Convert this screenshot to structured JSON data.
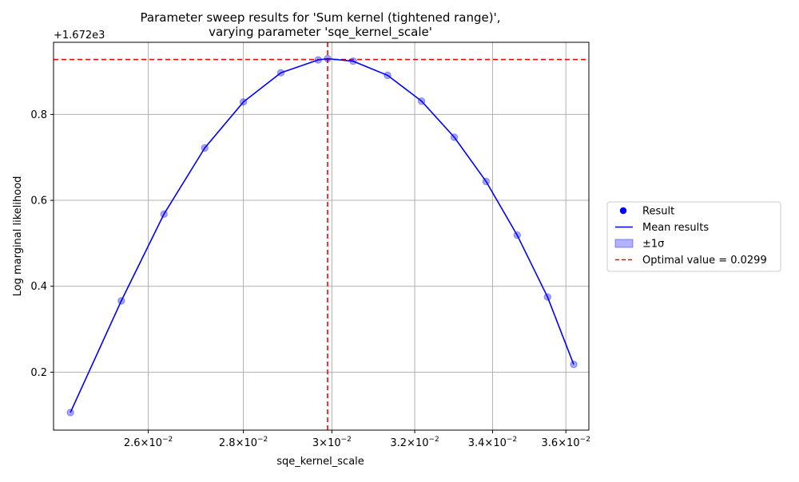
{
  "chart_data": {
    "type": "line",
    "title_line1": "Parameter sweep results for 'Sum kernel (tightened range)',",
    "title_line2": "varying parameter 'sqe_kernel_scale'",
    "xlabel": "sqe_kernel_scale",
    "ylabel": "Log marginal likelihood",
    "x_scale": "log",
    "y_offset_label": "+1.672e3",
    "xlim": [
      0.02415,
      0.03665
    ],
    "ylim": [
      0.065,
      0.968
    ],
    "grid": true,
    "x_ticks": [
      {
        "value": 0.026,
        "mantissa": "2.6",
        "exp": "−2"
      },
      {
        "value": 0.028,
        "mantissa": "2.8",
        "exp": "−2"
      },
      {
        "value": 0.03,
        "mantissa": "3",
        "exp": "−2"
      },
      {
        "value": 0.032,
        "mantissa": "3.2",
        "exp": "−2"
      },
      {
        "value": 0.034,
        "mantissa": "3.4",
        "exp": "−2"
      },
      {
        "value": 0.036,
        "mantissa": "3.6",
        "exp": "−2"
      }
    ],
    "y_ticks": [
      {
        "value": 0.2,
        "label": "0.2"
      },
      {
        "value": 0.4,
        "label": "0.4"
      },
      {
        "value": 0.6,
        "label": "0.6"
      },
      {
        "value": 0.8,
        "label": "0.8"
      }
    ],
    "series": [
      {
        "kind": "mean",
        "color": "#0000ff",
        "x": [
          0.02447,
          0.02546,
          0.02632,
          0.02717,
          0.028,
          0.02883,
          0.02968,
          0.0299,
          0.0305,
          0.03133,
          0.03217,
          0.033,
          0.03383,
          0.03466,
          0.03549,
          0.03622
        ],
        "y": [
          0.106,
          0.366,
          0.568,
          0.722,
          0.829,
          0.897,
          0.927,
          0.93,
          0.924,
          0.891,
          0.831,
          0.747,
          0.644,
          0.519,
          0.375,
          0.218
        ]
      }
    ],
    "optimal": {
      "x": 0.0299,
      "y": 0.928,
      "color": "#ff0000"
    },
    "legend": {
      "placement": "right",
      "entries": [
        {
          "kind": "marker",
          "label": "Result",
          "color": "#0000ff"
        },
        {
          "kind": "line",
          "label": "Mean results",
          "color": "#0000ff"
        },
        {
          "kind": "patch",
          "label": "±1σ",
          "color": "#0000ff"
        },
        {
          "kind": "dashed",
          "label": "Optimal value = 0.0299",
          "color": "#ff0000"
        }
      ]
    }
  }
}
